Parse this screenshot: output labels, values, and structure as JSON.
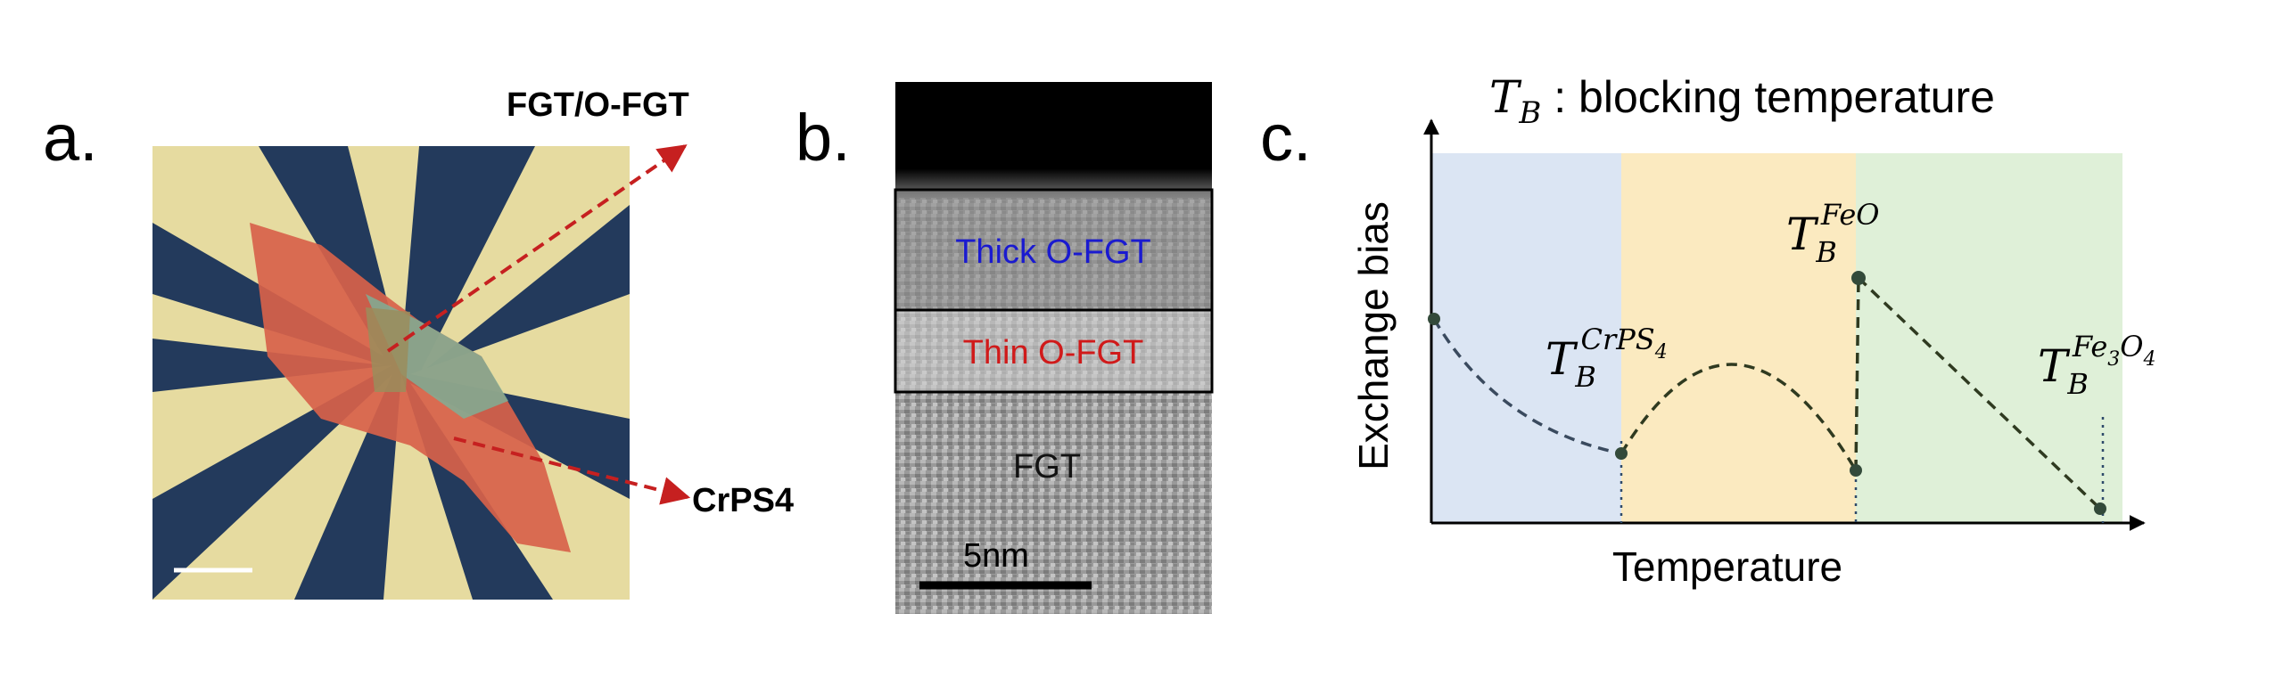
{
  "panels": [
    {
      "label": "a.",
      "annotations": [
        "FGT/O-FGT",
        "CrPS4"
      ]
    },
    {
      "label": "b.",
      "layers": [
        "Thick O-FGT",
        "Thin O-FGT",
        "FGT"
      ],
      "scale_bar": "5nm"
    },
    {
      "label": "c.",
      "title": {
        "symbol": "T",
        "sub": "B",
        "text": " : blocking temperature"
      },
      "y_label": "Exchange bias",
      "x_label": "Temperature",
      "markers": [
        {
          "base": "T",
          "sub": "B",
          "sup": [
            {
              "text": "CrPS"
            },
            {
              "text": "4"
            }
          ]
        },
        {
          "base": "T",
          "sub": "B",
          "sup": [
            {
              "text": "FeO"
            }
          ]
        },
        {
          "base": "T",
          "sub": "B",
          "sup": [
            {
              "text": "Fe"
            },
            {
              "text": "3"
            },
            {
              "text": "O"
            },
            {
              "text": "4"
            }
          ]
        }
      ]
    }
  ]
}
